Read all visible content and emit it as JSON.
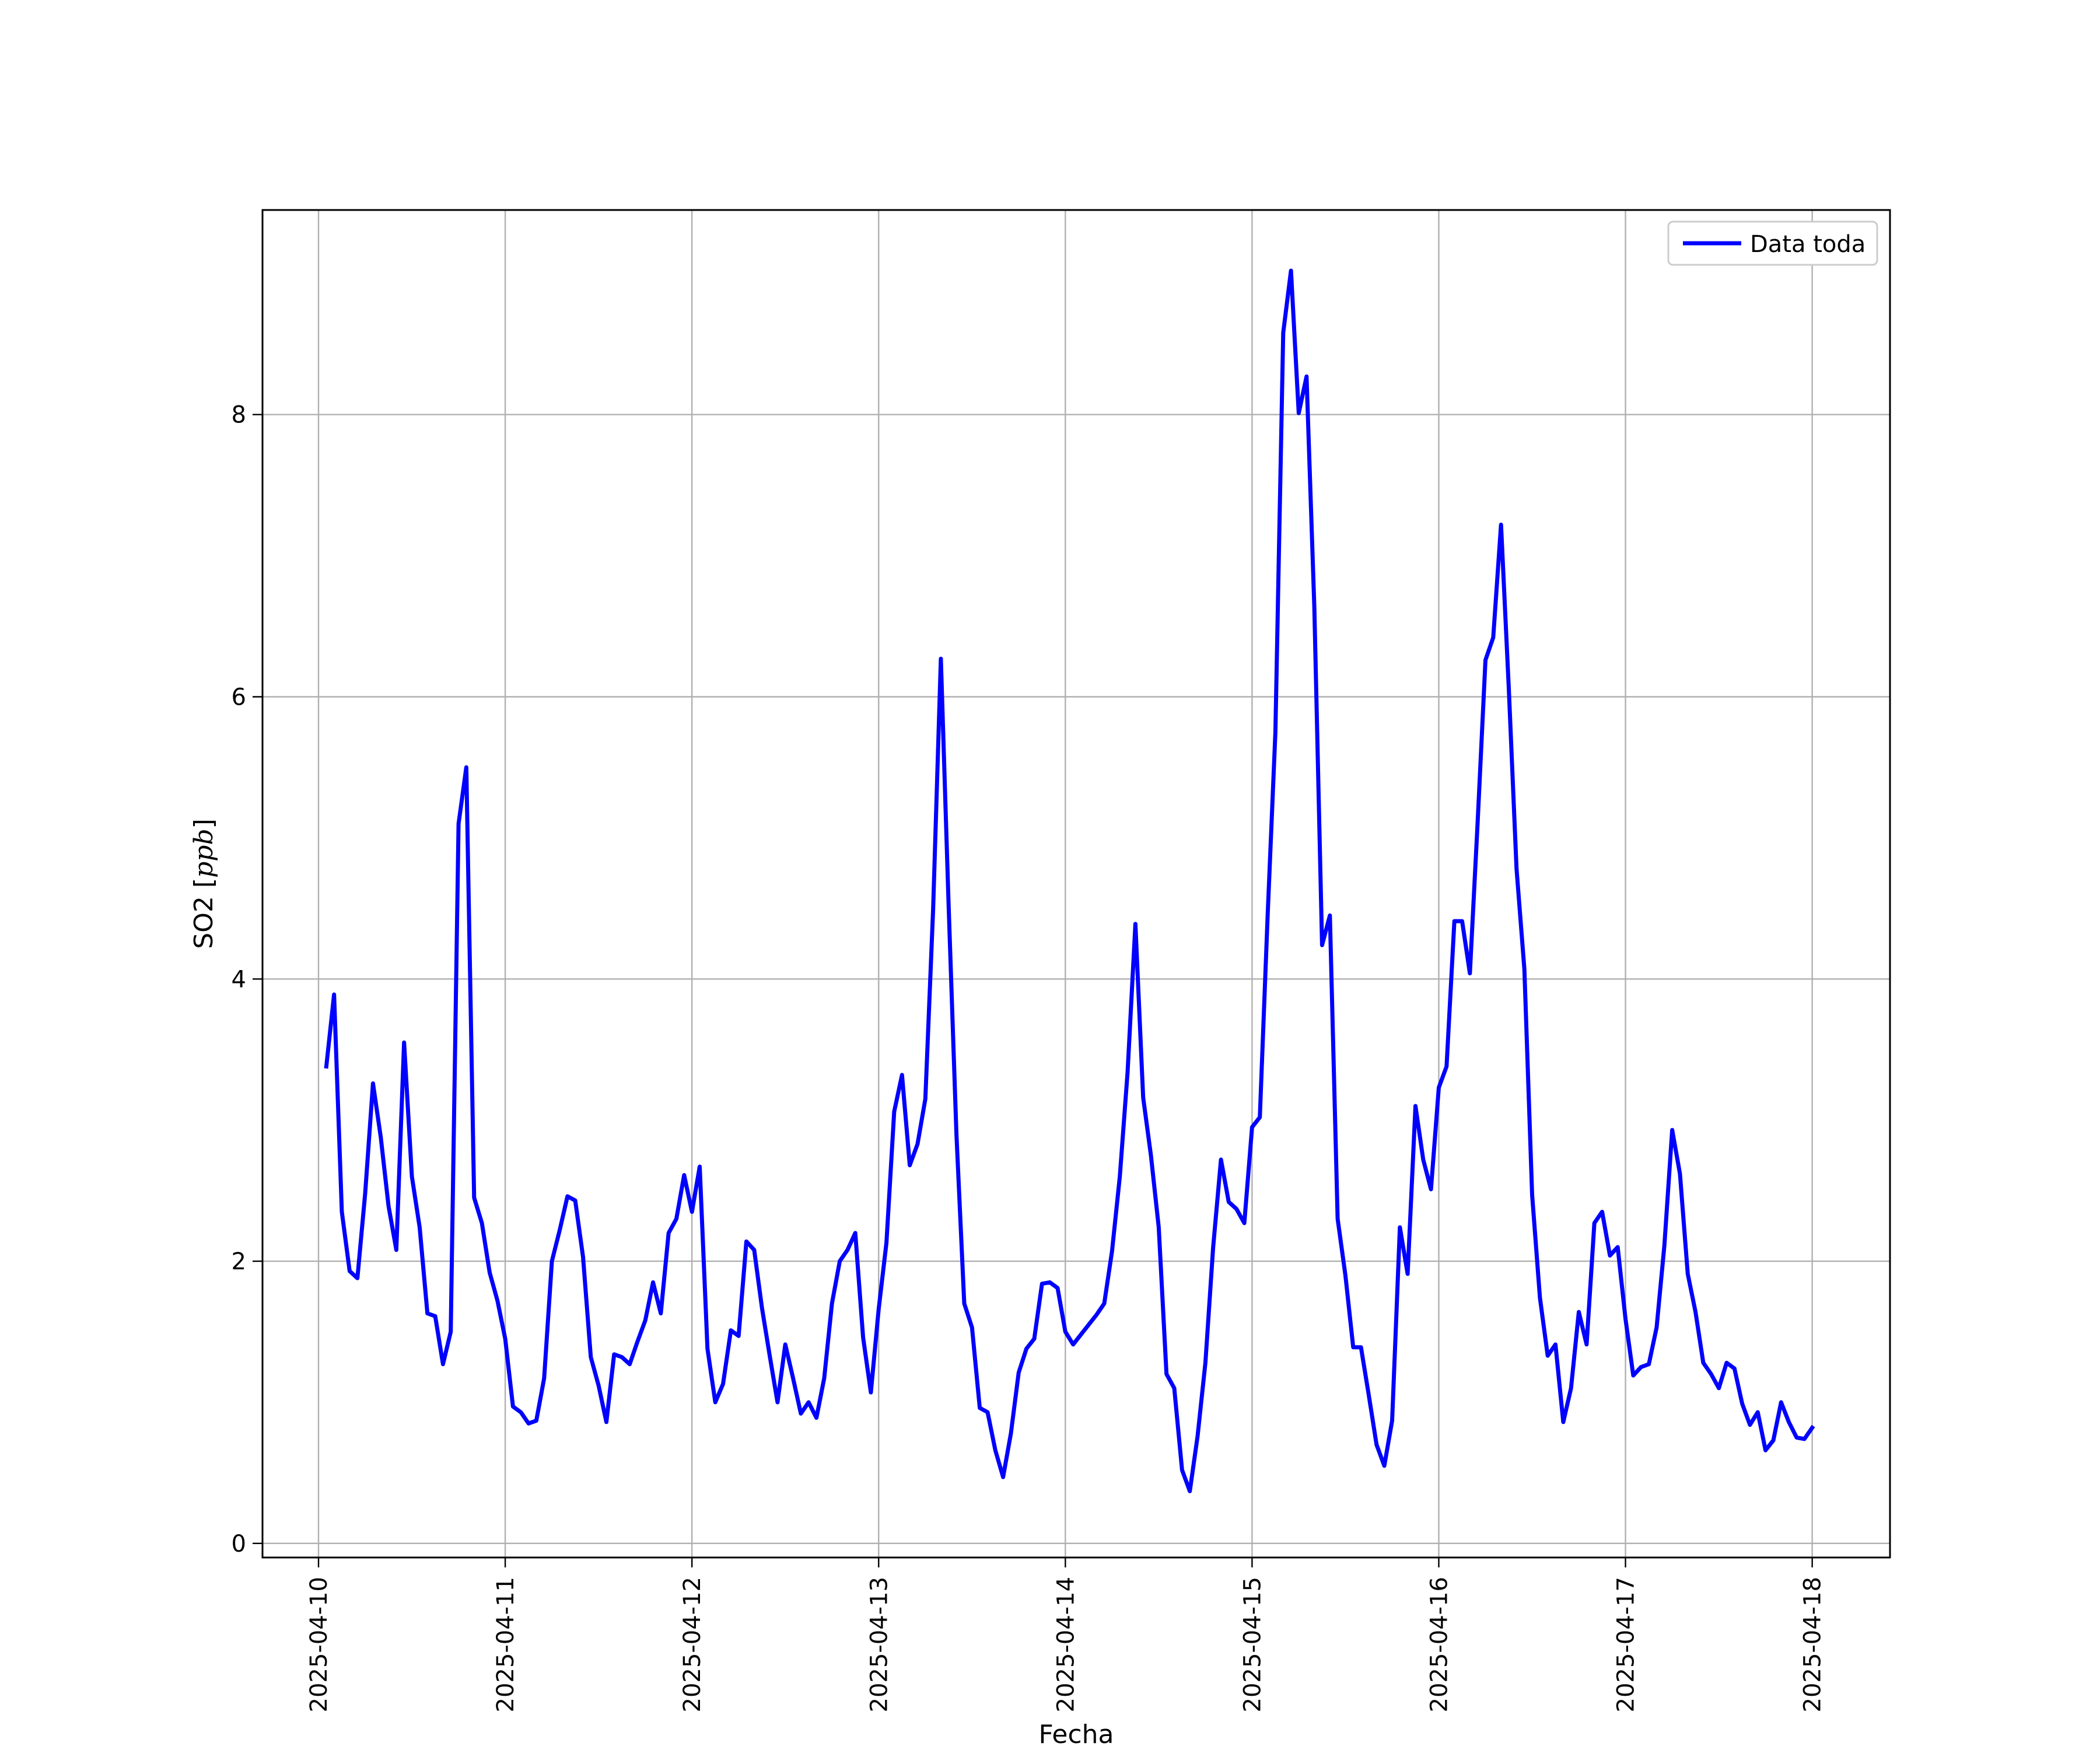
{
  "chart_data": {
    "type": "line",
    "xlabel": "Fecha",
    "ylabel_main": "SO2 [",
    "ylabel_unit": "ppb",
    "ylabel_close": "]",
    "xlim": [
      "2025-04-09 16:48",
      "2025-04-18 10:00"
    ],
    "ylim": [
      -0.1,
      9.45
    ],
    "grid": true,
    "legend_position": "upper right",
    "x_ticks": [
      "2025-04-10",
      "2025-04-11",
      "2025-04-12",
      "2025-04-13",
      "2025-04-14",
      "2025-04-15",
      "2025-04-16",
      "2025-04-17",
      "2025-04-18"
    ],
    "y_ticks": [
      0,
      2,
      4,
      6,
      8
    ],
    "series": [
      {
        "name": "Data toda",
        "color": "#0000ff",
        "start": "2025-04-10 01:00",
        "interval_hours": 1,
        "values": [
          3.38,
          3.89,
          2.35,
          1.93,
          1.88,
          2.48,
          3.26,
          2.88,
          2.39,
          2.08,
          3.55,
          2.6,
          2.24,
          1.63,
          1.61,
          1.27,
          1.5,
          5.1,
          5.5,
          2.45,
          2.27,
          1.92,
          1.72,
          1.45,
          0.97,
          0.93,
          0.85,
          0.87,
          1.17,
          2.0,
          2.22,
          2.46,
          2.43,
          2.03,
          1.32,
          1.12,
          0.86,
          1.34,
          1.32,
          1.27,
          1.43,
          1.58,
          1.85,
          1.63,
          2.2,
          2.3,
          2.61,
          2.35,
          2.67,
          1.38,
          1.0,
          1.13,
          1.51,
          1.47,
          2.14,
          2.08,
          1.67,
          1.33,
          1.0,
          1.41,
          1.17,
          0.92,
          1.0,
          0.89,
          1.17,
          1.7,
          2.0,
          2.08,
          2.2,
          1.46,
          1.07,
          1.66,
          2.13,
          3.06,
          3.32,
          2.68,
          2.83,
          3.15,
          4.49,
          6.27,
          4.51,
          2.9,
          1.7,
          1.53,
          0.96,
          0.93,
          0.66,
          0.47,
          0.78,
          1.21,
          1.38,
          1.45,
          1.84,
          1.85,
          1.81,
          1.5,
          1.41,
          1.48,
          1.55,
          1.62,
          1.7,
          2.07,
          2.6,
          3.34,
          4.39,
          3.16,
          2.75,
          2.24,
          1.2,
          1.1,
          0.52,
          0.37,
          0.76,
          1.28,
          2.1,
          2.72,
          2.42,
          2.37,
          2.27,
          2.95,
          3.02,
          4.45,
          5.75,
          8.58,
          9.02,
          8.01,
          8.27,
          6.64,
          4.24,
          4.45,
          2.3,
          1.9,
          1.39,
          1.39,
          1.05,
          0.7,
          0.55,
          0.87,
          2.24,
          1.91,
          3.1,
          2.72,
          2.51,
          3.23,
          3.38,
          4.41,
          4.41,
          4.04,
          5.12,
          6.26,
          6.42,
          7.22,
          6.06,
          4.78,
          4.07,
          2.47,
          1.74,
          1.33,
          1.41,
          0.86,
          1.1,
          1.64,
          1.41,
          2.27,
          2.35,
          2.04,
          2.1,
          1.59,
          1.19,
          1.25,
          1.27,
          1.53,
          2.11,
          2.93,
          2.62,
          1.91,
          1.64,
          1.28,
          1.2,
          1.1,
          1.28,
          1.24,
          0.99,
          0.84,
          0.93,
          0.66,
          0.73,
          1.0,
          0.86,
          0.75,
          0.74,
          0.82
        ]
      }
    ]
  }
}
